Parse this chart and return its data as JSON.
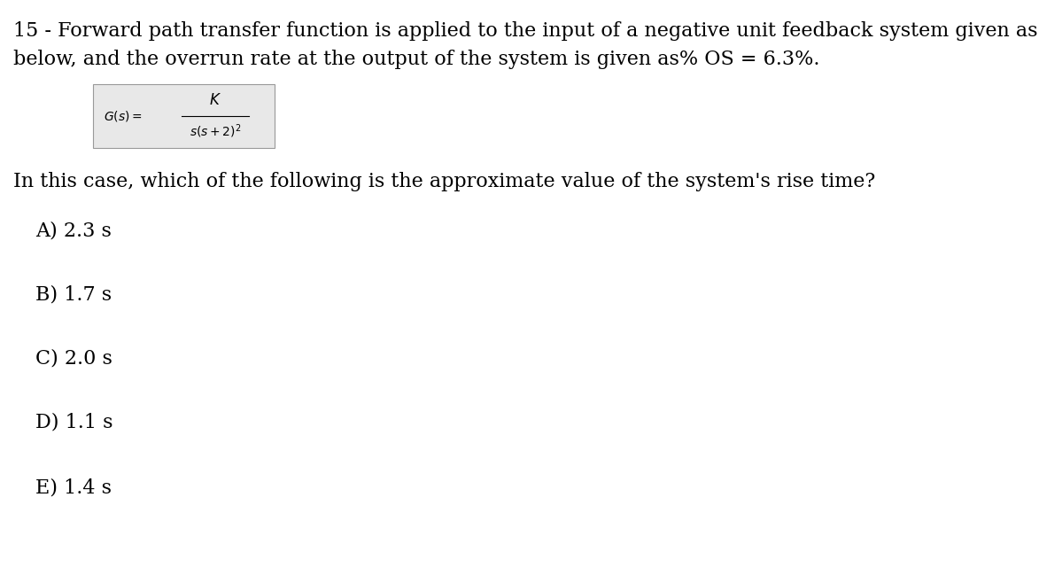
{
  "background_color": "#ffffff",
  "text_color": "#000000",
  "figsize": [
    11.73,
    6.49
  ],
  "dpi": 100,
  "line1": "15 - Forward path transfer function is applied to the input of a negative unit feedback system given as",
  "line2": "below, and the overrun rate at the output of the system is given as% OS = 6.3%.",
  "followup_text": "In this case, which of the following is the approximate value of the system's rise time?",
  "options": [
    "A) 2.3 s",
    "B) 1.7 s",
    "C) 2.0 s",
    "D) 1.1 s",
    "E) 1.4 s"
  ],
  "main_fontsize": 16,
  "option_fontsize": 16,
  "formula_gs_fontsize": 10,
  "formula_k_fontsize": 12,
  "formula_denom_fontsize": 10,
  "box_facecolor": "#e8e8e8",
  "box_edgecolor": "#999999"
}
